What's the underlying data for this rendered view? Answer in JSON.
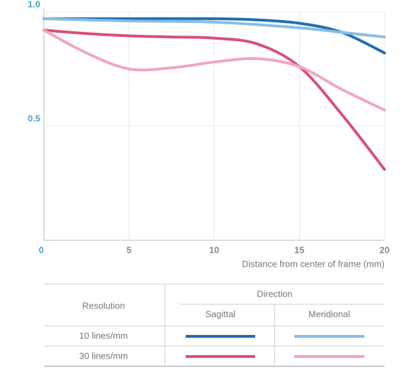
{
  "chart_data": {
    "type": "line",
    "x_label": "Distance from center of frame (mm)",
    "xlim": [
      0,
      20
    ],
    "xticks": [
      0,
      5,
      10,
      15,
      20
    ],
    "ylim": [
      0,
      1
    ],
    "yticks": [
      0.5,
      {
        "value": 1,
        "label": "1.0"
      }
    ],
    "grid": true,
    "series": [
      {
        "color": "#1f6fb2",
        "x": [
          0,
          5,
          10,
          12.5,
          15,
          17.5,
          20
        ],
        "values": [
          0.97,
          0.97,
          0.97,
          0.965,
          0.95,
          0.91,
          0.82
        ]
      },
      {
        "color": "#8bbde3",
        "x": [
          0,
          5,
          10,
          15,
          17.5,
          20
        ],
        "values": [
          0.97,
          0.96,
          0.955,
          0.93,
          0.91,
          0.89
        ]
      },
      {
        "color": "#d6507a",
        "x": [
          0,
          2.5,
          5,
          7.5,
          10,
          12.5,
          15,
          17.5,
          20
        ],
        "values": [
          0.92,
          0.905,
          0.895,
          0.89,
          0.885,
          0.86,
          0.76,
          0.55,
          0.31
        ]
      },
      {
        "color": "#f0a7bc",
        "x": [
          0,
          2.5,
          5,
          7.5,
          10,
          12.5,
          15,
          17.5,
          20
        ],
        "values": [
          0.92,
          0.82,
          0.75,
          0.755,
          0.78,
          0.795,
          0.76,
          0.66,
          0.57
        ]
      }
    ],
    "legend": {
      "row_header": "Resolution",
      "column_header": "Direction",
      "columns": [
        "Sagittal",
        "Meridional"
      ],
      "rows": [
        "10 lines/mm",
        "30 lines/mm"
      ]
    }
  }
}
